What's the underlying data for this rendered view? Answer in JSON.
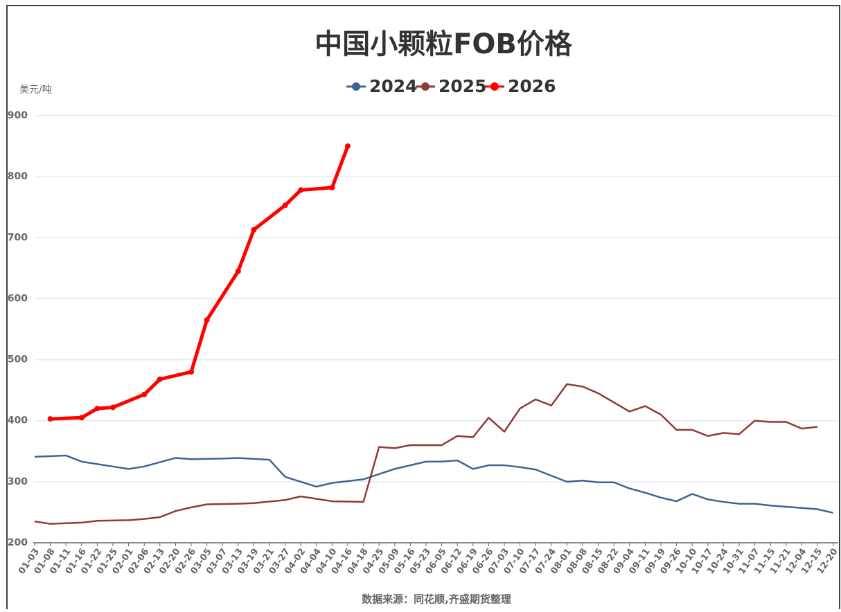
{
  "chart_data": {
    "type": "line",
    "title": "中国小颗粒FOB价格",
    "y_label": "美元/吨",
    "source": "数据来源：同花顺,齐盛期货整理",
    "categories": [
      "01-03",
      "01-08",
      "01-11",
      "01-16",
      "01-22",
      "01-25",
      "02-01",
      "02-06",
      "02-13",
      "02-20",
      "02-26",
      "03-05",
      "03-07",
      "03-13",
      "03-19",
      "03-21",
      "03-27",
      "04-02",
      "04-04",
      "04-10",
      "04-16",
      "04-18",
      "04-25",
      "05-09",
      "05-16",
      "05-23",
      "06-05",
      "06-12",
      "06-19",
      "06-26",
      "07-03",
      "07-10",
      "07-17",
      "07-24",
      "08-01",
      "08-08",
      "08-15",
      "08-22",
      "09-04",
      "09-11",
      "09-19",
      "09-26",
      "10-10",
      "10-17",
      "10-24",
      "10-31",
      "11-07",
      "11-15",
      "11-21",
      "12-04",
      "12-15",
      "12-20"
    ],
    "ylim": [
      200,
      900
    ],
    "yticks": [
      200,
      300,
      400,
      500,
      600,
      700,
      800,
      900
    ],
    "grid": true,
    "series": [
      {
        "name": "2024",
        "color": "#3e6494",
        "markers": false,
        "x": [
          "01-03",
          "01-11",
          "01-16",
          "01-25",
          "02-01",
          "02-06",
          "02-20",
          "02-26",
          "03-07",
          "03-13",
          "03-21",
          "03-27",
          "04-04",
          "04-10",
          "04-18",
          "05-09",
          "05-23",
          "06-05",
          "06-12",
          "06-19",
          "06-26",
          "07-03",
          "07-10",
          "07-17",
          "08-01",
          "08-08",
          "08-15",
          "08-22",
          "09-04",
          "09-11",
          "09-19",
          "09-26",
          "10-10",
          "10-17",
          "10-24",
          "10-31",
          "11-07",
          "11-15",
          "11-21",
          "12-04",
          "12-15",
          "12-20"
        ],
        "values": [
          341,
          343,
          333,
          325,
          321,
          325,
          339,
          337,
          338,
          339,
          336,
          308,
          292,
          298,
          304,
          321,
          333,
          333,
          335,
          321,
          327,
          327,
          324,
          320,
          300,
          302,
          299,
          299,
          289,
          282,
          274,
          268,
          280,
          271,
          267,
          264,
          264,
          261,
          259,
          257,
          255,
          249
        ]
      },
      {
        "name": "2025",
        "color": "#8e3b35",
        "markers": false,
        "x": [
          "01-03",
          "01-08",
          "01-16",
          "01-22",
          "02-01",
          "02-06",
          "02-13",
          "02-20",
          "02-26",
          "03-05",
          "03-13",
          "03-19",
          "03-27",
          "04-02",
          "04-10",
          "04-18",
          "04-25",
          "05-09",
          "05-16",
          "06-05",
          "06-12",
          "06-19",
          "06-26",
          "07-03",
          "07-10",
          "07-17",
          "07-24",
          "08-01",
          "08-08",
          "08-15",
          "09-04",
          "09-11",
          "09-19",
          "09-26",
          "10-10",
          "10-17",
          "10-24",
          "10-31",
          "11-07",
          "11-15",
          "11-21",
          "12-04",
          "12-15"
        ],
        "values": [
          235,
          231,
          233,
          236,
          237,
          239,
          242,
          252,
          258,
          263,
          264,
          265,
          270,
          276,
          268,
          267,
          357,
          355,
          360,
          360,
          375,
          373,
          405,
          382,
          420,
          435,
          425,
          460,
          456,
          445,
          415,
          424,
          410,
          385,
          385,
          375,
          380,
          378,
          400,
          398,
          398,
          387,
          390
        ]
      },
      {
        "name": "2026",
        "color": "#ff0000",
        "markers": true,
        "x": [
          "01-08",
          "01-16",
          "01-22",
          "01-25",
          "02-06",
          "02-13",
          "02-26",
          "03-05",
          "03-13",
          "03-19",
          "03-27",
          "04-02",
          "04-10",
          "04-16"
        ],
        "values": [
          403,
          405,
          420,
          422,
          443,
          468,
          480,
          565,
          645,
          713,
          753,
          778,
          782,
          850
        ]
      }
    ]
  }
}
